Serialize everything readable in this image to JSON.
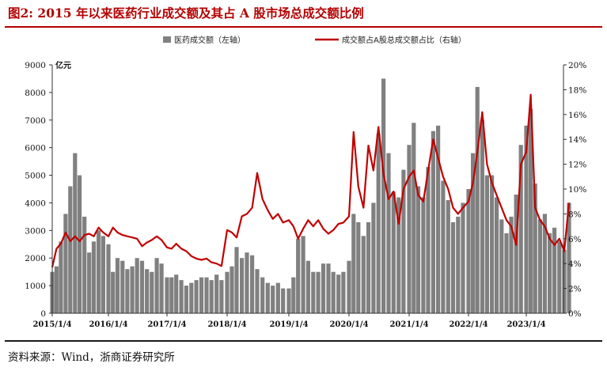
{
  "figure": {
    "title": "图2:   2015 年以来医药行业成交额及其占 A 股市场总成交额比例",
    "source": "资料来源：Wind，浙商证券研究所"
  },
  "colors": {
    "title": "#b30000",
    "bars": "#808080",
    "line": "#c00000"
  },
  "chart_data": {
    "type": "bar+line",
    "legend_position": "top",
    "grid": false,
    "x_ticks": [
      "2015/1/4",
      "2016/1/4",
      "2017/1/4",
      "2018/1/4",
      "2019/1/4",
      "2020/1/4",
      "2021/1/4",
      "2022/1/4",
      "2023/1/4"
    ],
    "y_left": {
      "unit": "亿元",
      "range": [
        0,
        9000
      ],
      "ticks": [
        "0",
        "1000",
        "2000",
        "3000",
        "4000",
        "5000",
        "6000",
        "7000",
        "8000",
        "9000"
      ]
    },
    "y_right": {
      "range": [
        0,
        20
      ],
      "ticks": [
        "0%",
        "2%",
        "4%",
        "6%",
        "8%",
        "10%",
        "12%",
        "14%",
        "16%",
        "18%",
        "20%"
      ]
    },
    "series": [
      {
        "name": "医药成交额（左轴）",
        "type": "bar",
        "axis": "left",
        "points": [
          [
            "2015/1/4",
            1500
          ],
          [
            "2015/2/1",
            1700
          ],
          [
            "2015/3/1",
            2600
          ],
          [
            "2015/4/1",
            3600
          ],
          [
            "2015/5/1",
            4600
          ],
          [
            "2015/6/1",
            5800
          ],
          [
            "2015/7/1",
            5000
          ],
          [
            "2015/8/1",
            3500
          ],
          [
            "2015/9/1",
            2200
          ],
          [
            "2015/10/1",
            2600
          ],
          [
            "2015/11/1",
            3000
          ],
          [
            "2015/12/1",
            2800
          ],
          [
            "2016/1/4",
            2500
          ],
          [
            "2016/2/1",
            1500
          ],
          [
            "2016/3/1",
            2000
          ],
          [
            "2016/4/1",
            1900
          ],
          [
            "2016/5/1",
            1600
          ],
          [
            "2016/6/1",
            1700
          ],
          [
            "2016/7/1",
            2000
          ],
          [
            "2016/8/1",
            1900
          ],
          [
            "2016/9/1",
            1600
          ],
          [
            "2016/10/1",
            1500
          ],
          [
            "2016/11/1",
            2000
          ],
          [
            "2016/12/1",
            1800
          ],
          [
            "2017/1/4",
            1300
          ],
          [
            "2017/2/1",
            1300
          ],
          [
            "2017/3/1",
            1400
          ],
          [
            "2017/4/1",
            1200
          ],
          [
            "2017/5/1",
            1000
          ],
          [
            "2017/6/1",
            1100
          ],
          [
            "2017/7/1",
            1200
          ],
          [
            "2017/8/1",
            1300
          ],
          [
            "2017/9/1",
            1300
          ],
          [
            "2017/10/1",
            1200
          ],
          [
            "2017/11/1",
            1400
          ],
          [
            "2017/12/1",
            1200
          ],
          [
            "2018/1/4",
            1500
          ],
          [
            "2018/2/1",
            1700
          ],
          [
            "2018/3/1",
            2400
          ],
          [
            "2018/4/1",
            2000
          ],
          [
            "2018/5/1",
            2200
          ],
          [
            "2018/6/1",
            2100
          ],
          [
            "2018/7/1",
            1600
          ],
          [
            "2018/8/1",
            1300
          ],
          [
            "2018/9/1",
            1100
          ],
          [
            "2018/10/1",
            1000
          ],
          [
            "2018/11/1",
            1100
          ],
          [
            "2018/12/1",
            900
          ],
          [
            "2019/1/4",
            900
          ],
          [
            "2019/2/1",
            1300
          ],
          [
            "2019/3/1",
            2700
          ],
          [
            "2019/4/1",
            2800
          ],
          [
            "2019/5/1",
            1900
          ],
          [
            "2019/6/1",
            1500
          ],
          [
            "2019/7/1",
            1500
          ],
          [
            "2019/8/1",
            1800
          ],
          [
            "2019/9/1",
            1800
          ],
          [
            "2019/10/1",
            1500
          ],
          [
            "2019/11/1",
            1400
          ],
          [
            "2019/12/1",
            1500
          ],
          [
            "2020/1/4",
            1900
          ],
          [
            "2020/2/1",
            3600
          ],
          [
            "2020/3/1",
            3300
          ],
          [
            "2020/4/1",
            2800
          ],
          [
            "2020/5/1",
            3300
          ],
          [
            "2020/6/1",
            4000
          ],
          [
            "2020/7/1",
            6500
          ],
          [
            "2020/8/1",
            8500
          ],
          [
            "2020/9/1",
            5800
          ],
          [
            "2020/10/1",
            4400
          ],
          [
            "2020/11/1",
            4200
          ],
          [
            "2020/12/1",
            5200
          ],
          [
            "2021/1/4",
            6100
          ],
          [
            "2021/2/1",
            6900
          ],
          [
            "2021/3/1",
            4600
          ],
          [
            "2021/4/1",
            4200
          ],
          [
            "2021/5/1",
            5300
          ],
          [
            "2021/6/1",
            6600
          ],
          [
            "2021/7/1",
            6800
          ],
          [
            "2021/8/1",
            4800
          ],
          [
            "2021/9/1",
            4100
          ],
          [
            "2021/10/1",
            3300
          ],
          [
            "2021/11/1",
            3500
          ],
          [
            "2021/12/1",
            4000
          ],
          [
            "2022/1/4",
            4500
          ],
          [
            "2022/2/1",
            5800
          ],
          [
            "2022/3/1",
            8200
          ],
          [
            "2022/4/1",
            7000
          ],
          [
            "2022/5/1",
            5000
          ],
          [
            "2022/6/1",
            5000
          ],
          [
            "2022/7/1",
            4200
          ],
          [
            "2022/8/1",
            3400
          ],
          [
            "2022/9/1",
            2900
          ],
          [
            "2022/10/1",
            3500
          ],
          [
            "2022/11/1",
            4300
          ],
          [
            "2022/12/1",
            6100
          ],
          [
            "2023/1/4",
            6800
          ],
          [
            "2023/2/1",
            7400
          ],
          [
            "2023/3/1",
            4700
          ],
          [
            "2023/4/1",
            3400
          ],
          [
            "2023/5/1",
            3600
          ],
          [
            "2023/6/1",
            2900
          ],
          [
            "2023/7/1",
            3100
          ],
          [
            "2023/8/1",
            2600
          ],
          [
            "2023/9/1",
            2300
          ],
          [
            "2023/10/1",
            4000
          ]
        ]
      },
      {
        "name": "成交额占A股总成交额占比（右轴）",
        "type": "line",
        "axis": "right",
        "points": [
          [
            "2015/1/4",
            3.7
          ],
          [
            "2015/2/1",
            5.2
          ],
          [
            "2015/3/1",
            5.6
          ],
          [
            "2015/4/1",
            6.5
          ],
          [
            "2015/5/1",
            5.8
          ],
          [
            "2015/6/1",
            6.2
          ],
          [
            "2015/7/1",
            5.8
          ],
          [
            "2015/8/1",
            6.3
          ],
          [
            "2015/9/1",
            6.4
          ],
          [
            "2015/10/1",
            6.2
          ],
          [
            "2015/11/1",
            6.9
          ],
          [
            "2015/12/1",
            6.5
          ],
          [
            "2016/1/4",
            6.2
          ],
          [
            "2016/2/1",
            6.9
          ],
          [
            "2016/3/1",
            6.5
          ],
          [
            "2016/4/1",
            6.3
          ],
          [
            "2016/5/1",
            6.2
          ],
          [
            "2016/6/1",
            6.1
          ],
          [
            "2016/7/1",
            6.0
          ],
          [
            "2016/8/1",
            5.4
          ],
          [
            "2016/9/1",
            5.7
          ],
          [
            "2016/10/1",
            5.9
          ],
          [
            "2016/11/1",
            6.2
          ],
          [
            "2016/12/1",
            5.9
          ],
          [
            "2017/1/4",
            5.3
          ],
          [
            "2017/2/1",
            5.2
          ],
          [
            "2017/3/1",
            5.6
          ],
          [
            "2017/4/1",
            5.2
          ],
          [
            "2017/5/1",
            5.0
          ],
          [
            "2017/6/1",
            4.6
          ],
          [
            "2017/7/1",
            4.4
          ],
          [
            "2017/8/1",
            4.3
          ],
          [
            "2017/9/1",
            4.4
          ],
          [
            "2017/10/1",
            4.1
          ],
          [
            "2017/11/1",
            4.0
          ],
          [
            "2017/12/1",
            3.8
          ],
          [
            "2018/1/4",
            6.7
          ],
          [
            "2018/2/1",
            6.5
          ],
          [
            "2018/3/1",
            6.1
          ],
          [
            "2018/4/1",
            7.8
          ],
          [
            "2018/5/1",
            8.0
          ],
          [
            "2018/6/1",
            8.5
          ],
          [
            "2018/7/1",
            11.3
          ],
          [
            "2018/8/1",
            9.2
          ],
          [
            "2018/9/1",
            8.3
          ],
          [
            "2018/10/1",
            7.6
          ],
          [
            "2018/11/1",
            8.0
          ],
          [
            "2018/12/1",
            7.3
          ],
          [
            "2019/1/4",
            7.5
          ],
          [
            "2019/2/1",
            7.0
          ],
          [
            "2019/3/1",
            6.0
          ],
          [
            "2019/4/1",
            6.8
          ],
          [
            "2019/5/1",
            7.5
          ],
          [
            "2019/6/1",
            7.0
          ],
          [
            "2019/7/1",
            7.5
          ],
          [
            "2019/8/1",
            6.8
          ],
          [
            "2019/9/1",
            6.4
          ],
          [
            "2019/10/1",
            6.7
          ],
          [
            "2019/11/1",
            7.2
          ],
          [
            "2019/12/1",
            7.3
          ],
          [
            "2020/1/4",
            7.8
          ],
          [
            "2020/2/1",
            14.6
          ],
          [
            "2020/3/1",
            10.2
          ],
          [
            "2020/4/1",
            8.5
          ],
          [
            "2020/5/1",
            13.5
          ],
          [
            "2020/6/1",
            11.5
          ],
          [
            "2020/7/1",
            15.0
          ],
          [
            "2020/8/1",
            11.2
          ],
          [
            "2020/9/1",
            9.2
          ],
          [
            "2020/10/1",
            9.8
          ],
          [
            "2020/11/1",
            7.2
          ],
          [
            "2020/12/1",
            10.0
          ],
          [
            "2021/1/4",
            11.0
          ],
          [
            "2021/2/1",
            11.5
          ],
          [
            "2021/3/1",
            9.5
          ],
          [
            "2021/4/1",
            9.0
          ],
          [
            "2021/5/1",
            11.5
          ],
          [
            "2021/6/1",
            14.0
          ],
          [
            "2021/7/1",
            12.5
          ],
          [
            "2021/8/1",
            11.0
          ],
          [
            "2021/9/1",
            10.0
          ],
          [
            "2021/10/1",
            8.5
          ],
          [
            "2021/11/1",
            8.0
          ],
          [
            "2021/12/1",
            8.5
          ],
          [
            "2022/1/4",
            9.0
          ],
          [
            "2022/2/1",
            10.5
          ],
          [
            "2022/3/1",
            13.0
          ],
          [
            "2022/4/1",
            16.2
          ],
          [
            "2022/5/1",
            12.0
          ],
          [
            "2022/6/1",
            10.5
          ],
          [
            "2022/7/1",
            9.5
          ],
          [
            "2022/8/1",
            8.5
          ],
          [
            "2022/9/1",
            7.5
          ],
          [
            "2022/10/1",
            7.0
          ],
          [
            "2022/11/1",
            5.5
          ],
          [
            "2022/12/1",
            12.0
          ],
          [
            "2023/1/4",
            13.0
          ],
          [
            "2023/2/1",
            17.6
          ],
          [
            "2023/3/1",
            8.5
          ],
          [
            "2023/4/1",
            7.5
          ],
          [
            "2023/5/1",
            7.0
          ],
          [
            "2023/6/1",
            6.0
          ],
          [
            "2023/7/1",
            5.5
          ],
          [
            "2023/8/1",
            6.0
          ],
          [
            "2023/9/1",
            5.0
          ],
          [
            "2023/10/1",
            8.9
          ]
        ]
      }
    ]
  }
}
